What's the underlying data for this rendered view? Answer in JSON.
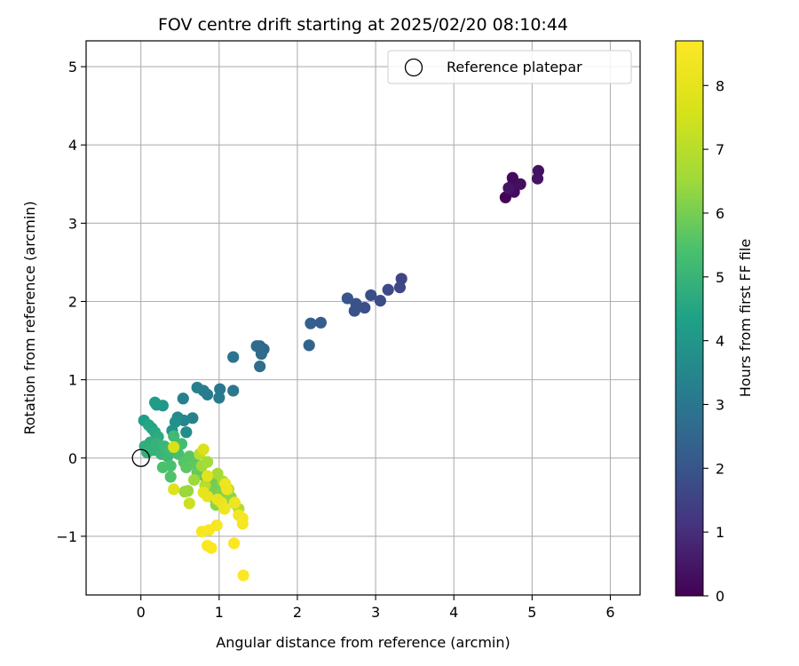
{
  "chart_data": {
    "type": "scatter",
    "title": "FOV centre drift starting at 2025/02/20 08:10:44",
    "xlabel": "Angular distance from reference (arcmin)",
    "ylabel": "Rotation from reference (arcmin)",
    "xlim": [
      -0.7,
      6.38
    ],
    "ylim": [
      -1.75,
      5.33
    ],
    "xticks": [
      0,
      1,
      2,
      3,
      4,
      5,
      6
    ],
    "yticks": [
      -1,
      0,
      1,
      2,
      3,
      4,
      5
    ],
    "xtick_labels": [
      "0",
      "1",
      "2",
      "3",
      "4",
      "5",
      "6"
    ],
    "ytick_labels": [
      "−1",
      "0",
      "1",
      "2",
      "3",
      "4",
      "5"
    ],
    "grid": true,
    "legend": {
      "placement": "top-right",
      "entries": [
        {
          "label": "Reference platepar",
          "marker": "open-circle",
          "color": "#000000"
        }
      ]
    },
    "reference_point": {
      "x": 0,
      "y": 0
    },
    "colorbar": {
      "label": "Hours from first FF file",
      "colormap": "viridis",
      "range": [
        0,
        8.7
      ],
      "ticks": [
        0,
        1,
        2,
        3,
        4,
        5,
        6,
        7,
        8
      ],
      "tick_labels": [
        "0",
        "1",
        "2",
        "3",
        "4",
        "5",
        "6",
        "7",
        "8"
      ]
    },
    "points": [
      {
        "x": 4.66,
        "y": 3.33,
        "h": 0.05
      },
      {
        "x": 4.72,
        "y": 3.42,
        "h": 0.1
      },
      {
        "x": 4.76,
        "y": 3.52,
        "h": 0.15
      },
      {
        "x": 4.75,
        "y": 3.58,
        "h": 0.2
      },
      {
        "x": 4.77,
        "y": 3.4,
        "h": 0.25
      },
      {
        "x": 4.85,
        "y": 3.5,
        "h": 0.3
      },
      {
        "x": 5.08,
        "y": 3.67,
        "h": 0.35
      },
      {
        "x": 5.07,
        "y": 3.57,
        "h": 0.4
      },
      {
        "x": 4.7,
        "y": 3.45,
        "h": 0.45
      },
      {
        "x": 3.33,
        "y": 2.29,
        "h": 1.6
      },
      {
        "x": 3.31,
        "y": 2.18,
        "h": 1.65
      },
      {
        "x": 3.16,
        "y": 2.15,
        "h": 1.7
      },
      {
        "x": 3.06,
        "y": 2.01,
        "h": 1.75
      },
      {
        "x": 2.94,
        "y": 2.08,
        "h": 1.8
      },
      {
        "x": 2.86,
        "y": 1.92,
        "h": 1.85
      },
      {
        "x": 2.73,
        "y": 1.88,
        "h": 1.9
      },
      {
        "x": 2.75,
        "y": 1.97,
        "h": 1.95
      },
      {
        "x": 2.64,
        "y": 2.04,
        "h": 2.0
      },
      {
        "x": 2.3,
        "y": 1.73,
        "h": 2.2
      },
      {
        "x": 2.17,
        "y": 1.72,
        "h": 2.3
      },
      {
        "x": 2.15,
        "y": 1.44,
        "h": 2.4
      },
      {
        "x": 1.57,
        "y": 1.39,
        "h": 2.5
      },
      {
        "x": 1.52,
        "y": 1.43,
        "h": 2.55
      },
      {
        "x": 1.48,
        "y": 1.43,
        "h": 2.6
      },
      {
        "x": 1.54,
        "y": 1.33,
        "h": 2.65
      },
      {
        "x": 1.52,
        "y": 1.17,
        "h": 2.7
      },
      {
        "x": 1.18,
        "y": 1.29,
        "h": 2.85
      },
      {
        "x": 1.18,
        "y": 0.86,
        "h": 3.0
      },
      {
        "x": 1.01,
        "y": 0.88,
        "h": 3.05
      },
      {
        "x": 1.0,
        "y": 0.77,
        "h": 3.1
      },
      {
        "x": 0.85,
        "y": 0.81,
        "h": 3.15
      },
      {
        "x": 0.8,
        "y": 0.86,
        "h": 3.2
      },
      {
        "x": 0.72,
        "y": 0.9,
        "h": 3.25
      },
      {
        "x": 0.54,
        "y": 0.76,
        "h": 3.3
      },
      {
        "x": 0.66,
        "y": 0.51,
        "h": 3.4
      },
      {
        "x": 0.55,
        "y": 0.48,
        "h": 3.5
      },
      {
        "x": 0.47,
        "y": 0.52,
        "h": 3.6
      },
      {
        "x": 0.58,
        "y": 0.33,
        "h": 3.7
      },
      {
        "x": 0.44,
        "y": 0.46,
        "h": 3.8
      },
      {
        "x": 0.4,
        "y": 0.35,
        "h": 3.9
      },
      {
        "x": 0.28,
        "y": 0.67,
        "h": 4.0
      },
      {
        "x": 0.2,
        "y": 0.68,
        "h": 4.1
      },
      {
        "x": 0.18,
        "y": 0.71,
        "h": 4.2
      },
      {
        "x": 0.04,
        "y": 0.48,
        "h": 4.3
      },
      {
        "x": 0.14,
        "y": 0.38,
        "h": 4.4
      },
      {
        "x": 0.1,
        "y": 0.42,
        "h": 4.5
      },
      {
        "x": 0.18,
        "y": 0.33,
        "h": 4.6
      },
      {
        "x": 0.22,
        "y": 0.27,
        "h": 4.7
      },
      {
        "x": 0.12,
        "y": 0.2,
        "h": 4.75
      },
      {
        "x": 0.05,
        "y": 0.15,
        "h": 4.8
      },
      {
        "x": 0.08,
        "y": 0.07,
        "h": 4.85
      },
      {
        "x": 0.16,
        "y": 0.1,
        "h": 4.9
      },
      {
        "x": 0.2,
        "y": 0.18,
        "h": 4.95
      },
      {
        "x": 0.26,
        "y": 0.05,
        "h": 5.0
      },
      {
        "x": 0.3,
        "y": 0.15,
        "h": 5.05
      },
      {
        "x": 0.34,
        "y": 0.02,
        "h": 5.1
      },
      {
        "x": 0.38,
        "y": 0.1,
        "h": 5.15
      },
      {
        "x": 0.42,
        "y": 0.28,
        "h": 5.2
      },
      {
        "x": 0.45,
        "y": 0.12,
        "h": 5.25
      },
      {
        "x": 0.52,
        "y": 0.18,
        "h": 5.3
      },
      {
        "x": 0.48,
        "y": 0.05,
        "h": 5.35
      },
      {
        "x": 0.38,
        "y": -0.1,
        "h": 5.4
      },
      {
        "x": 0.28,
        "y": -0.12,
        "h": 5.45
      },
      {
        "x": 0.38,
        "y": -0.24,
        "h": 5.5
      },
      {
        "x": 0.55,
        "y": -0.05,
        "h": 5.55
      },
      {
        "x": 0.62,
        "y": 0.02,
        "h": 5.6
      },
      {
        "x": 0.58,
        "y": -0.12,
        "h": 5.65
      },
      {
        "x": 0.7,
        "y": -0.08,
        "h": 5.7
      },
      {
        "x": 0.72,
        "y": -0.18,
        "h": 5.75
      },
      {
        "x": 0.8,
        "y": -0.22,
        "h": 5.8
      },
      {
        "x": 0.84,
        "y": -0.3,
        "h": 5.85
      },
      {
        "x": 0.9,
        "y": -0.28,
        "h": 5.9
      },
      {
        "x": 0.95,
        "y": -0.35,
        "h": 5.95
      },
      {
        "x": 0.88,
        "y": -0.4,
        "h": 6.0
      },
      {
        "x": 0.92,
        "y": -0.5,
        "h": 6.05
      },
      {
        "x": 1.0,
        "y": -0.45,
        "h": 6.1
      },
      {
        "x": 1.02,
        "y": -0.55,
        "h": 6.15
      },
      {
        "x": 1.08,
        "y": -0.52,
        "h": 6.2
      },
      {
        "x": 0.96,
        "y": -0.6,
        "h": 6.25
      },
      {
        "x": 1.15,
        "y": -0.5,
        "h": 6.3
      },
      {
        "x": 1.05,
        "y": -0.62,
        "h": 6.35
      },
      {
        "x": 0.6,
        "y": -0.42,
        "h": 6.4
      },
      {
        "x": 0.56,
        "y": -0.43,
        "h": 6.45
      },
      {
        "x": 0.68,
        "y": -0.28,
        "h": 6.5
      },
      {
        "x": 0.78,
        "y": -0.1,
        "h": 6.55
      },
      {
        "x": 0.85,
        "y": -0.05,
        "h": 6.6
      },
      {
        "x": 0.98,
        "y": -0.2,
        "h": 6.65
      },
      {
        "x": 1.05,
        "y": -0.3,
        "h": 6.7
      },
      {
        "x": 1.12,
        "y": -0.4,
        "h": 6.75
      },
      {
        "x": 1.2,
        "y": -0.58,
        "h": 6.8
      },
      {
        "x": 1.25,
        "y": -0.65,
        "h": 6.9
      },
      {
        "x": 0.82,
        "y": -0.35,
        "h": 6.95
      },
      {
        "x": 0.75,
        "y": 0.05,
        "h": 7.0
      },
      {
        "x": 0.62,
        "y": -0.58,
        "h": 7.4
      },
      {
        "x": 0.42,
        "y": 0.14,
        "h": 7.6
      },
      {
        "x": 0.8,
        "y": 0.11,
        "h": 7.7
      },
      {
        "x": 0.42,
        "y": -0.4,
        "h": 7.8
      },
      {
        "x": 0.85,
        "y": -0.23,
        "h": 7.9
      },
      {
        "x": 0.8,
        "y": -0.44,
        "h": 8.0
      },
      {
        "x": 0.85,
        "y": -0.49,
        "h": 8.05
      },
      {
        "x": 0.98,
        "y": -0.53,
        "h": 8.1
      },
      {
        "x": 1.03,
        "y": -0.57,
        "h": 8.15
      },
      {
        "x": 1.08,
        "y": -0.33,
        "h": 8.2
      },
      {
        "x": 1.1,
        "y": -0.4,
        "h": 8.25
      },
      {
        "x": 1.07,
        "y": -0.65,
        "h": 8.3
      },
      {
        "x": 1.2,
        "y": -0.57,
        "h": 8.35
      },
      {
        "x": 1.25,
        "y": -0.73,
        "h": 8.4
      },
      {
        "x": 1.3,
        "y": -0.77,
        "h": 8.45
      },
      {
        "x": 1.3,
        "y": -0.84,
        "h": 8.5
      },
      {
        "x": 0.97,
        "y": -0.86,
        "h": 8.5
      },
      {
        "x": 0.87,
        "y": -0.92,
        "h": 8.55
      },
      {
        "x": 0.78,
        "y": -0.94,
        "h": 8.55
      },
      {
        "x": 0.85,
        "y": -1.12,
        "h": 8.6
      },
      {
        "x": 0.9,
        "y": -1.15,
        "h": 8.6
      },
      {
        "x": 1.19,
        "y": -1.09,
        "h": 8.6
      },
      {
        "x": 1.31,
        "y": -1.5,
        "h": 8.65
      }
    ]
  }
}
